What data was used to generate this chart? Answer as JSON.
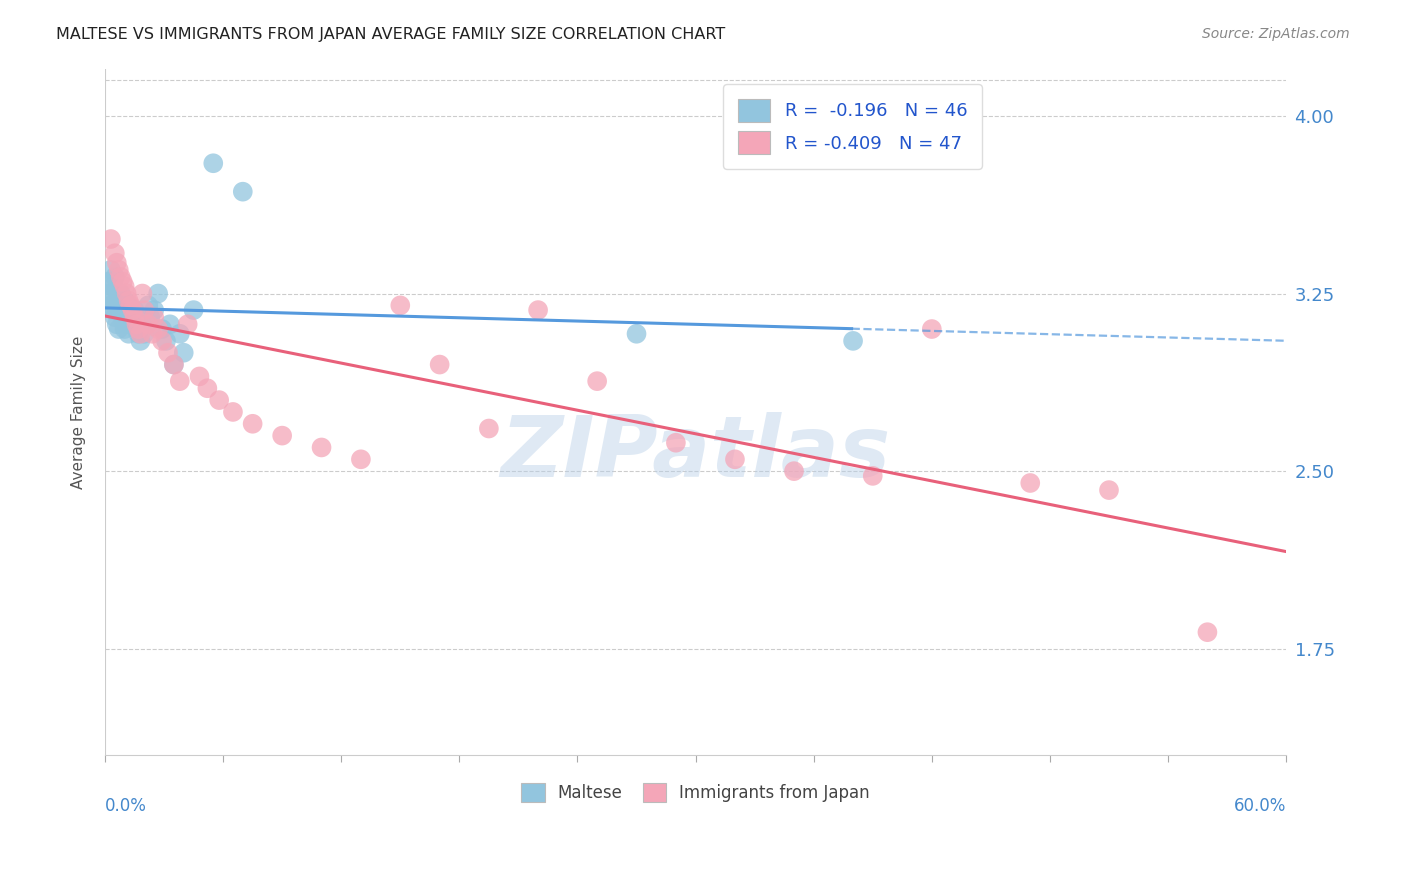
{
  "title": "MALTESE VS IMMIGRANTS FROM JAPAN AVERAGE FAMILY SIZE CORRELATION CHART",
  "source": "Source: ZipAtlas.com",
  "ylabel": "Average Family Size",
  "yticks": [
    1.75,
    2.5,
    3.25,
    4.0
  ],
  "xlim": [
    0.0,
    0.6
  ],
  "ylim": [
    1.3,
    4.2
  ],
  "legend_maltese": "R =  -0.196   N = 46",
  "legend_japan": "R = -0.409   N = 47",
  "legend_label_1": "Maltese",
  "legend_label_2": "Immigrants from Japan",
  "watermark": "ZIPatlas",
  "blue_scatter_color": "#92c5de",
  "pink_scatter_color": "#f4a6b8",
  "blue_line_color": "#5599dd",
  "pink_line_color": "#e8607a",
  "maltese_x": [
    0.001,
    0.002,
    0.002,
    0.003,
    0.003,
    0.004,
    0.004,
    0.005,
    0.005,
    0.006,
    0.006,
    0.007,
    0.007,
    0.008,
    0.008,
    0.009,
    0.009,
    0.01,
    0.01,
    0.011,
    0.011,
    0.012,
    0.012,
    0.013,
    0.014,
    0.015,
    0.016,
    0.017,
    0.018,
    0.019,
    0.02,
    0.022,
    0.023,
    0.025,
    0.027,
    0.029,
    0.031,
    0.033,
    0.035,
    0.038,
    0.04,
    0.045,
    0.055,
    0.07,
    0.27,
    0.38
  ],
  "maltese_y": [
    3.25,
    3.3,
    3.22,
    3.35,
    3.2,
    3.28,
    3.18,
    3.32,
    3.15,
    3.26,
    3.12,
    3.22,
    3.1,
    3.18,
    3.25,
    3.2,
    3.15,
    3.22,
    3.1,
    3.18,
    3.12,
    3.2,
    3.08,
    3.15,
    3.12,
    3.18,
    3.1,
    3.08,
    3.05,
    3.12,
    3.08,
    3.2,
    3.15,
    3.18,
    3.25,
    3.1,
    3.05,
    3.12,
    2.95,
    3.08,
    3.0,
    3.18,
    3.8,
    3.68,
    3.08,
    3.05
  ],
  "japan_x": [
    0.003,
    0.005,
    0.006,
    0.007,
    0.008,
    0.009,
    0.01,
    0.011,
    0.012,
    0.013,
    0.014,
    0.015,
    0.016,
    0.017,
    0.018,
    0.019,
    0.02,
    0.022,
    0.024,
    0.025,
    0.027,
    0.029,
    0.032,
    0.035,
    0.038,
    0.042,
    0.048,
    0.052,
    0.058,
    0.065,
    0.075,
    0.09,
    0.11,
    0.13,
    0.15,
    0.17,
    0.195,
    0.22,
    0.25,
    0.29,
    0.32,
    0.35,
    0.39,
    0.42,
    0.47,
    0.51,
    0.56
  ],
  "japan_y": [
    3.48,
    3.42,
    3.38,
    3.35,
    3.32,
    3.3,
    3.28,
    3.25,
    3.22,
    3.2,
    3.18,
    3.15,
    3.12,
    3.1,
    3.08,
    3.25,
    3.18,
    3.12,
    3.08,
    3.15,
    3.1,
    3.05,
    3.0,
    2.95,
    2.88,
    3.12,
    2.9,
    2.85,
    2.8,
    2.75,
    2.7,
    2.65,
    2.6,
    2.55,
    3.2,
    2.95,
    2.68,
    3.18,
    2.88,
    2.62,
    2.55,
    2.5,
    2.48,
    3.1,
    2.45,
    2.42,
    1.82
  ]
}
